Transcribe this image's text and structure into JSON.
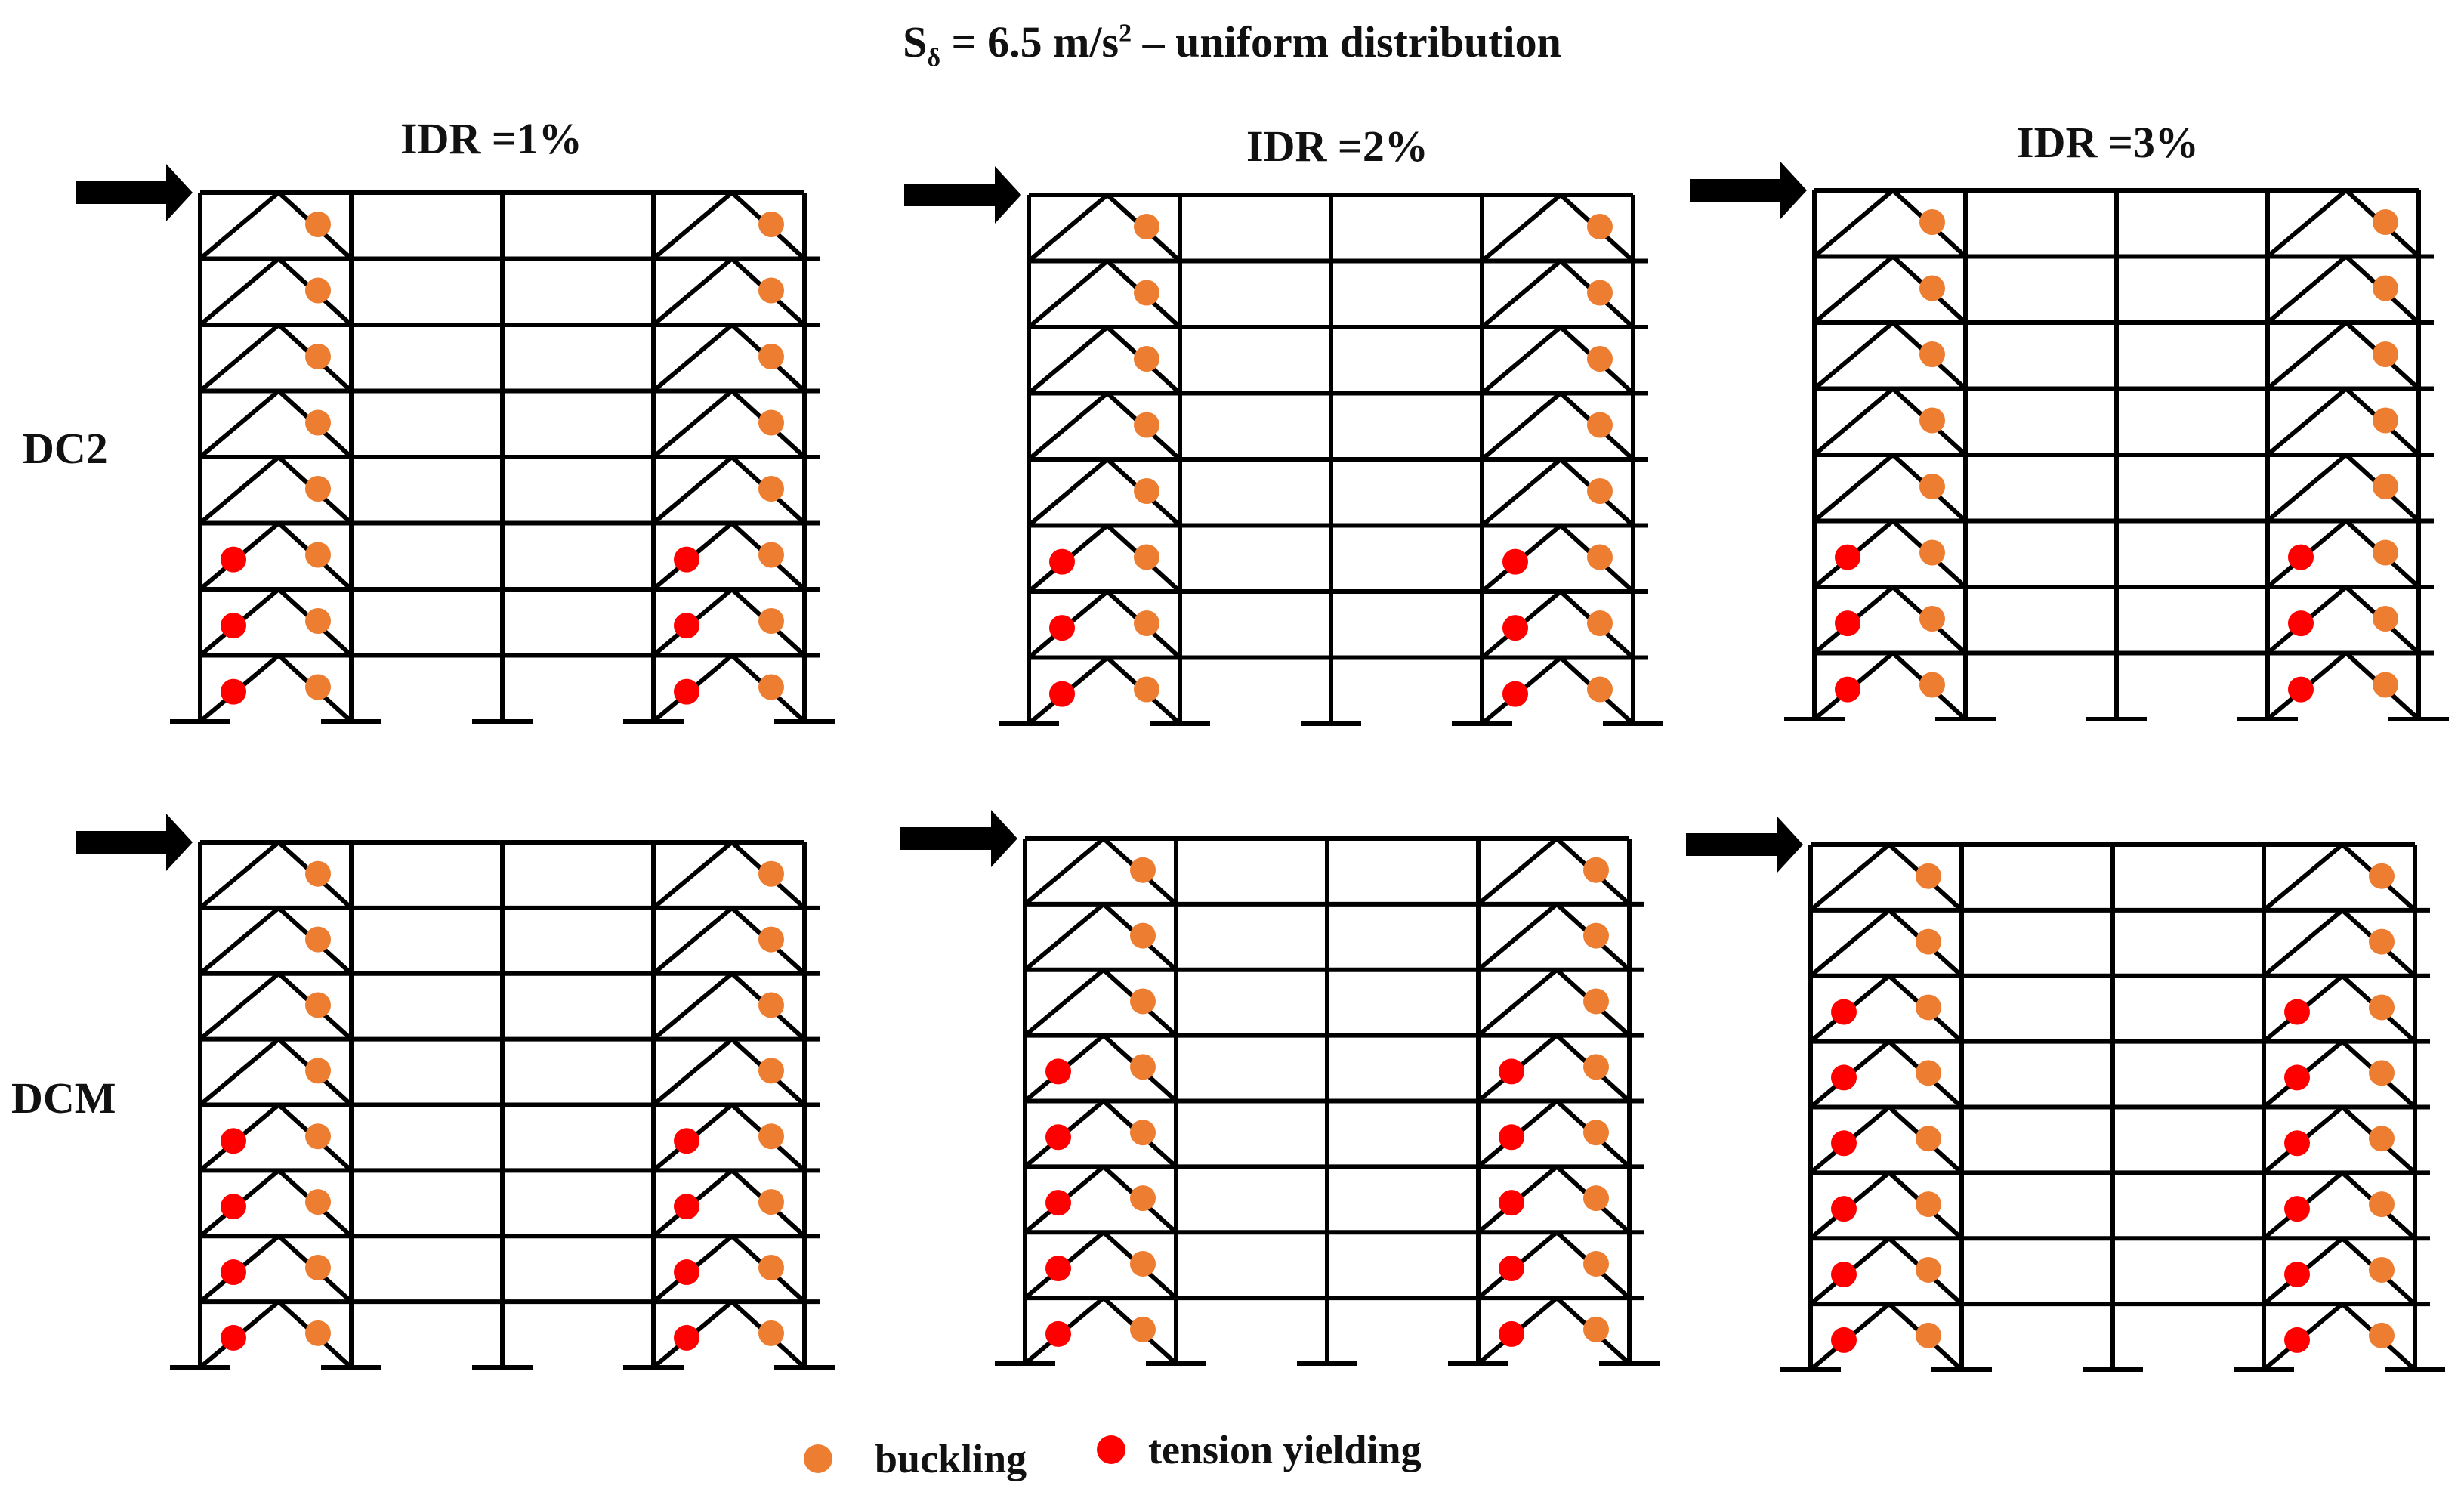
{
  "figure": {
    "title_main": "S",
    "title_sub": "δ",
    "title_rest": " = 6.5 m/s",
    "title_sup": "2",
    "title_end": " – uniform distribution",
    "columns": [
      "IDR =1%",
      "IDR =2%",
      "IDR =3%"
    ],
    "rows": [
      "DC2",
      "DCM"
    ],
    "stories": 8,
    "bays": 4,
    "braced_bays": [
      1,
      4
    ]
  },
  "legend": {
    "buckling_label": "buckling",
    "tension_label": "tension yielding",
    "buckling_color": "#ed7d31",
    "tension_color": "#ff0000"
  },
  "panels": [
    {
      "row": "DC2",
      "column": "IDR =1%",
      "tension_yielding_stories": [
        1,
        2,
        3
      ],
      "buckling_stories": [
        1,
        2,
        3,
        4,
        5,
        6,
        7,
        8
      ]
    },
    {
      "row": "DC2",
      "column": "IDR =2%",
      "tension_yielding_stories": [
        1,
        2,
        3
      ],
      "buckling_stories": [
        1,
        2,
        3,
        4,
        5,
        6,
        7,
        8
      ]
    },
    {
      "row": "DC2",
      "column": "IDR =3%",
      "tension_yielding_stories": [
        1,
        2,
        3
      ],
      "buckling_stories": [
        1,
        2,
        3,
        4,
        5,
        6,
        7,
        8
      ]
    },
    {
      "row": "DCM",
      "column": "IDR =1%",
      "tension_yielding_stories": [
        1,
        2,
        3,
        4
      ],
      "buckling_stories": [
        1,
        2,
        3,
        4,
        5,
        6,
        7,
        8
      ]
    },
    {
      "row": "DCM",
      "column": "IDR =2%",
      "tension_yielding_stories": [
        1,
        2,
        3,
        4,
        5
      ],
      "buckling_stories": [
        1,
        2,
        3,
        4,
        5,
        6,
        7,
        8
      ]
    },
    {
      "row": "DCM",
      "column": "IDR =3%",
      "tension_yielding_stories": [
        1,
        2,
        3,
        4,
        5,
        6
      ],
      "buckling_stories": [
        1,
        2,
        3,
        4,
        5,
        6,
        7,
        8
      ]
    }
  ]
}
